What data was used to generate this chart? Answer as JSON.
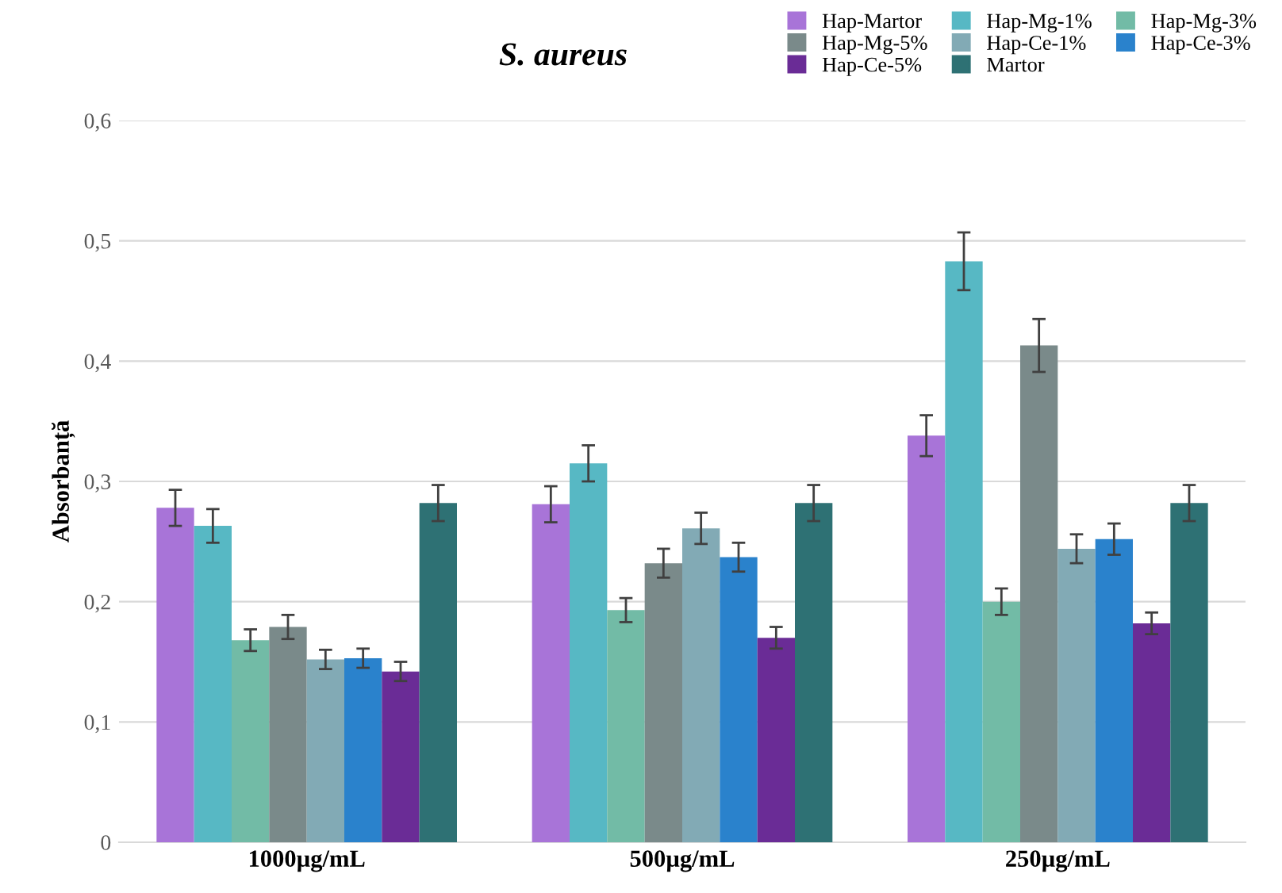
{
  "chart_data": {
    "type": "bar",
    "title": "S. aureus",
    "ylabel": "Absorbanță",
    "categories": [
      "1000µg/mL",
      "500µg/mL",
      "250µg/mL"
    ],
    "series": [
      {
        "name": "Hap-Martor",
        "color": "#a874d8",
        "values": [
          0.278,
          0.281,
          0.338
        ],
        "errors": [
          0.015,
          0.015,
          0.017
        ]
      },
      {
        "name": "Hap-Mg-1%",
        "color": "#57b8c4",
        "values": [
          0.263,
          0.315,
          0.483
        ],
        "errors": [
          0.014,
          0.015,
          0.024
        ]
      },
      {
        "name": "Hap-Mg-3%",
        "color": "#72bba6",
        "values": [
          0.168,
          0.193,
          0.2
        ],
        "errors": [
          0.009,
          0.01,
          0.011
        ]
      },
      {
        "name": "Hap-Mg-5%",
        "color": "#7a8a8a",
        "values": [
          0.179,
          0.232,
          0.413
        ],
        "errors": [
          0.01,
          0.012,
          0.022
        ]
      },
      {
        "name": "Hap-Ce-1%",
        "color": "#82aab5",
        "values": [
          0.152,
          0.261,
          0.244
        ],
        "errors": [
          0.008,
          0.013,
          0.012
        ]
      },
      {
        "name": "Hap-Ce-3%",
        "color": "#2a82cc",
        "values": [
          0.153,
          0.237,
          0.252
        ],
        "errors": [
          0.008,
          0.012,
          0.013
        ]
      },
      {
        "name": "Hap-Ce-5%",
        "color": "#6a2c96",
        "values": [
          0.142,
          0.17,
          0.182
        ],
        "errors": [
          0.008,
          0.009,
          0.009
        ]
      },
      {
        "name": "Martor",
        "color": "#2e7174",
        "values": [
          0.282,
          0.282,
          0.282
        ],
        "errors": [
          0.015,
          0.015,
          0.015
        ]
      }
    ],
    "ylim": [
      0,
      0.6
    ],
    "yticks": [
      {
        "value": 0,
        "label": "0"
      },
      {
        "value": 0.1,
        "label": "0,1"
      },
      {
        "value": 0.2,
        "label": "0,2"
      },
      {
        "value": 0.3,
        "label": "0,3"
      },
      {
        "value": 0.4,
        "label": "0,4"
      },
      {
        "value": 0.5,
        "label": "0,5"
      },
      {
        "value": 0.6,
        "label": "0,6"
      }
    ],
    "grid": "y",
    "legend": "top right"
  }
}
